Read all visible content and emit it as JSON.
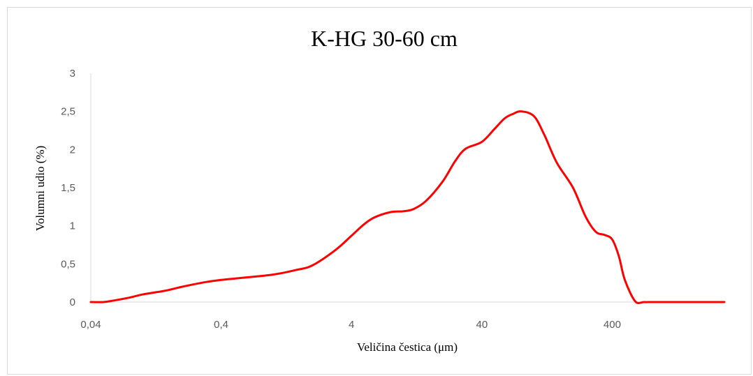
{
  "chart_data": {
    "type": "line",
    "title": "K-HG 30-60 cm",
    "xlabel": "Veličina čestica (μm)",
    "ylabel": "Volumni udio (%)",
    "x_scale": "log",
    "x_ticks": [
      {
        "value": 0.04,
        "label": "0,04"
      },
      {
        "value": 0.4,
        "label": "0,4"
      },
      {
        "value": 4,
        "label": "4"
      },
      {
        "value": 40,
        "label": "40"
      },
      {
        "value": 400,
        "label": "400"
      }
    ],
    "y_ticks": [
      {
        "value": 0,
        "label": "0"
      },
      {
        "value": 0.5,
        "label": "0,5"
      },
      {
        "value": 1,
        "label": "1"
      },
      {
        "value": 1.5,
        "label": "1,5"
      },
      {
        "value": 2,
        "label": "2"
      },
      {
        "value": 2.5,
        "label": "2,5"
      },
      {
        "value": 3,
        "label": "3"
      }
    ],
    "xlim": [
      0.04,
      2900
    ],
    "ylim": [
      0,
      3
    ],
    "grid": false,
    "legend": "none",
    "series_color": "#ff0000",
    "series": [
      {
        "x": [
          0.04,
          0.05,
          0.06,
          0.08,
          0.1,
          0.15,
          0.2,
          0.3,
          0.4,
          0.6,
          1,
          1.5,
          2,
          3,
          4,
          5,
          6,
          8,
          10,
          12,
          15,
          20,
          25,
          30,
          40,
          50,
          60,
          70,
          80,
          100,
          120,
          150,
          200,
          250,
          300,
          350,
          400,
          450,
          500,
          600,
          700,
          800,
          1000,
          1500,
          2000,
          2900
        ],
        "y": [
          0,
          0,
          0.02,
          0.06,
          0.1,
          0.15,
          0.2,
          0.26,
          0.29,
          0.32,
          0.36,
          0.42,
          0.48,
          0.68,
          0.87,
          1.02,
          1.11,
          1.18,
          1.19,
          1.22,
          1.33,
          1.58,
          1.85,
          2.01,
          2.1,
          2.27,
          2.41,
          2.47,
          2.5,
          2.44,
          2.2,
          1.83,
          1.5,
          1.12,
          0.92,
          0.88,
          0.82,
          0.6,
          0.29,
          0.01,
          0,
          0,
          0,
          0,
          0,
          0
        ]
      }
    ]
  }
}
